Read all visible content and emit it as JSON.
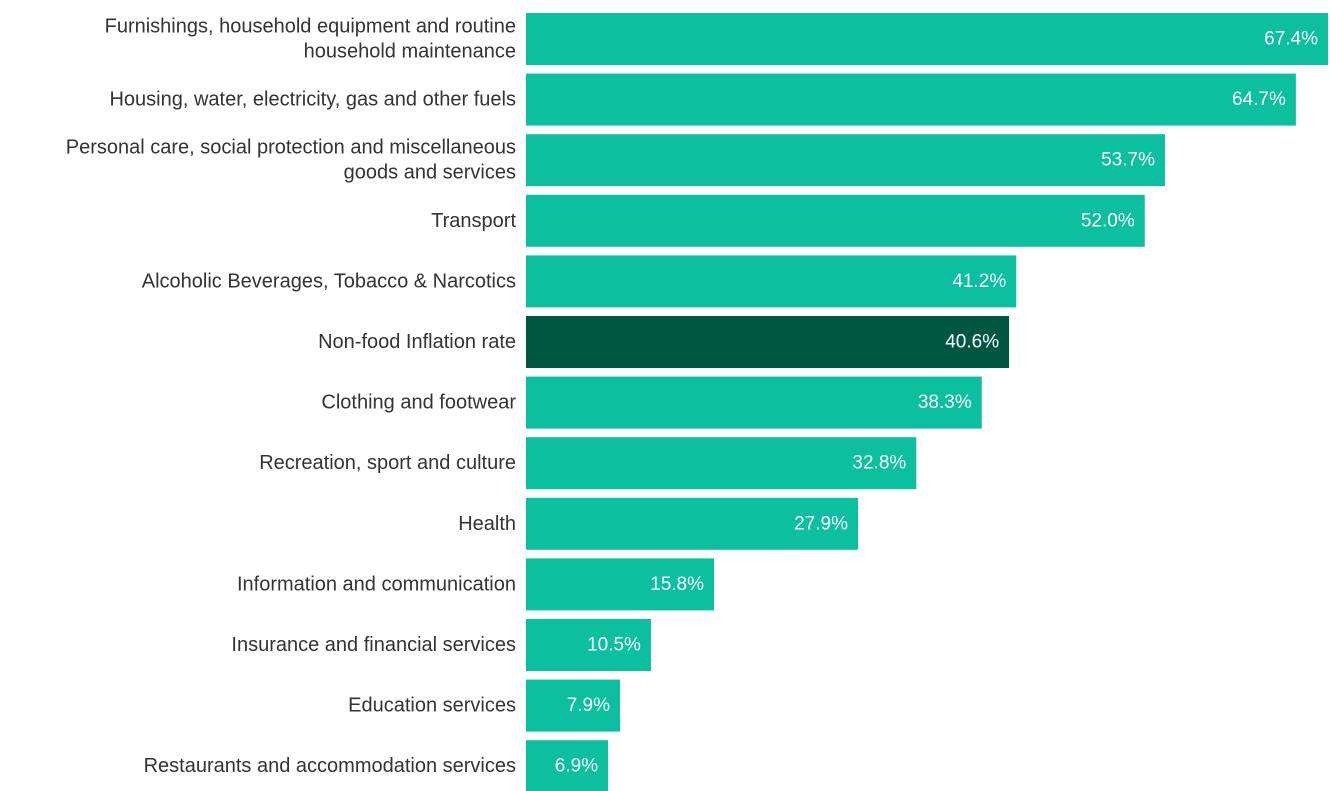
{
  "chart_data": {
    "type": "bar",
    "orientation": "horizontal",
    "categories": [
      [
        "Furnishings, household equipment and routine",
        "household maintenance"
      ],
      [
        "Housing, water, electricity, gas and other fuels"
      ],
      [
        "Personal care, social protection and miscellaneous",
        "goods and services"
      ],
      [
        "Transport"
      ],
      [
        "Alcoholic Beverages, Tobacco & Narcotics"
      ],
      [
        "Non-food Inflation rate"
      ],
      [
        "Clothing and footwear"
      ],
      [
        "Recreation, sport and culture"
      ],
      [
        "Health"
      ],
      [
        "Information and communication"
      ],
      [
        "Insurance and financial services"
      ],
      [
        "Education services"
      ],
      [
        "Restaurants and accommodation services"
      ]
    ],
    "values": [
      67.4,
      64.7,
      53.7,
      52.0,
      41.2,
      40.6,
      38.3,
      32.8,
      27.9,
      15.8,
      10.5,
      7.9,
      6.9
    ],
    "value_labels": [
      "67.4%",
      "64.7%",
      "53.7%",
      "52.0%",
      "41.2%",
      "40.6%",
      "38.3%",
      "32.8%",
      "27.9%",
      "15.8%",
      "10.5%",
      "7.9%",
      "6.9%"
    ],
    "highlight_index": 5,
    "xlim": [
      0,
      67.4
    ],
    "title": "",
    "xlabel": "",
    "ylabel": "",
    "grid": false,
    "legend": "none",
    "colors": {
      "bar": "#0bbf9f",
      "highlight": "#00573f",
      "label_text": "#333333",
      "value_text": "#ffffff"
    }
  }
}
